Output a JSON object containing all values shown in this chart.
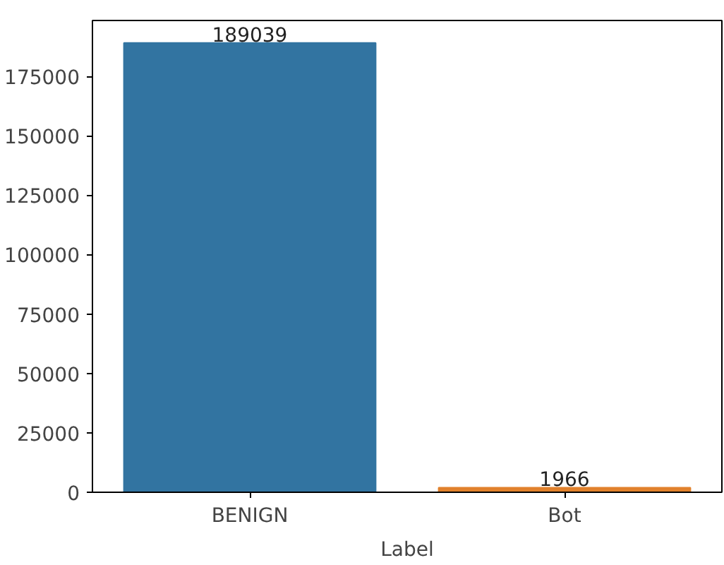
{
  "chart_data": {
    "type": "bar",
    "xlabel": "Label",
    "categories": [
      "BENIGN",
      "Bot"
    ],
    "values": [
      189039,
      1966
    ],
    "colors": [
      "#3274a1",
      "#e1812c"
    ],
    "ylim": [
      0,
      198500
    ],
    "yticks": [
      0,
      25000,
      50000,
      75000,
      100000,
      125000,
      150000,
      175000
    ],
    "data_labels": true,
    "grid": false
  }
}
